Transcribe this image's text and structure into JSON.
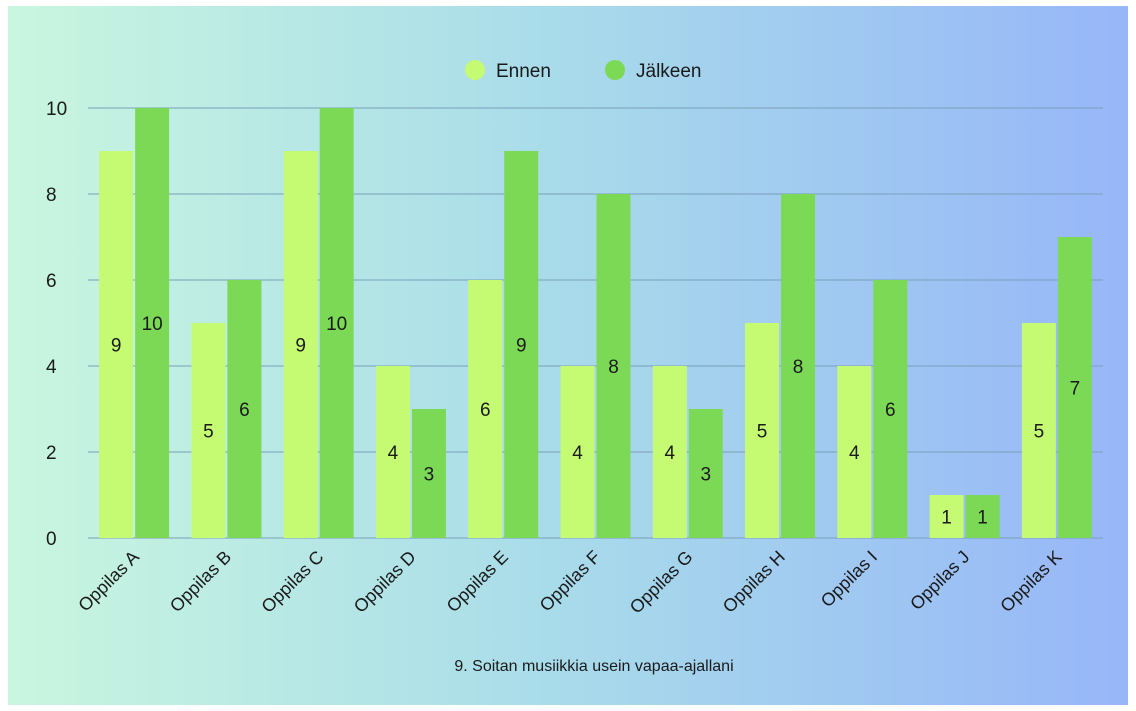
{
  "chart_data": {
    "type": "bar",
    "title": "9. Soitan musiikkia usein vapaa-ajallani",
    "categories": [
      "Oppilas A",
      "Oppilas B",
      "Oppilas C",
      "Oppilas D",
      "Oppilas E",
      "Oppilas F",
      "Oppilas G",
      "Oppilas H",
      "Oppilas I",
      "Oppilas J",
      "Oppilas K"
    ],
    "series": [
      {
        "name": "Ennen",
        "values": [
          9,
          5,
          9,
          4,
          6,
          4,
          4,
          5,
          4,
          1,
          5
        ],
        "color": "#c5fb72"
      },
      {
        "name": "Jälkeen",
        "values": [
          10,
          6,
          10,
          3,
          9,
          8,
          3,
          8,
          6,
          1,
          7
        ],
        "color": "#7cd956"
      }
    ],
    "ylim": [
      0,
      10
    ],
    "yticks": [
      0,
      2,
      4,
      6,
      8,
      10
    ],
    "grid": true,
    "legend_position": "top-center",
    "data_labels": true
  }
}
